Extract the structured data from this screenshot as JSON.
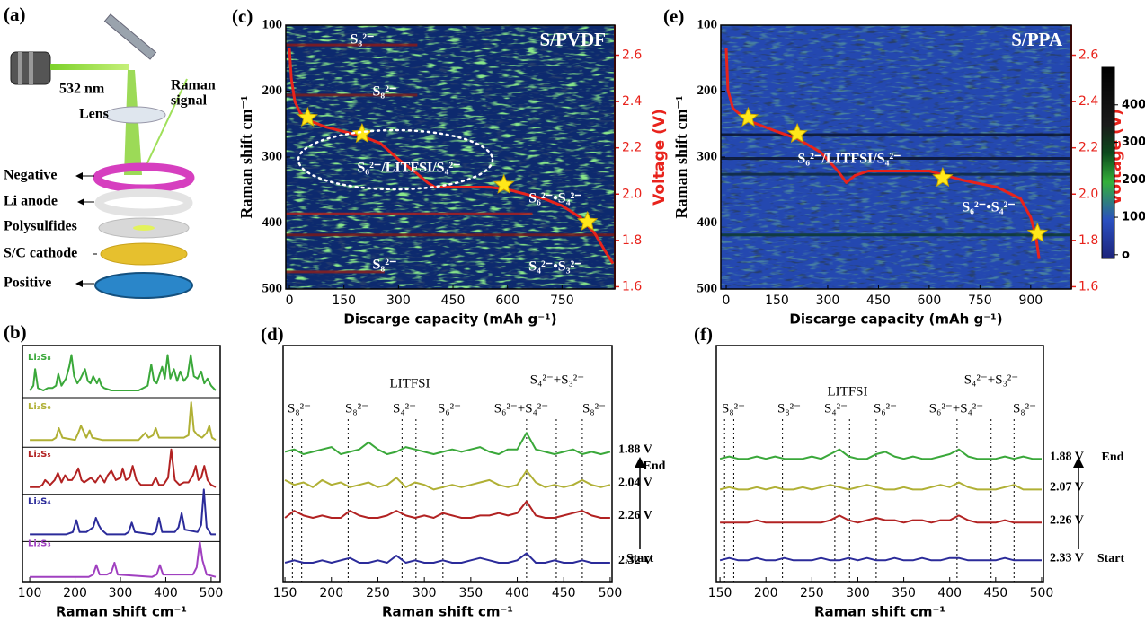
{
  "diagram": {
    "label": "(a)",
    "laser": "532 nm",
    "signal": [
      "Raman",
      "signal"
    ],
    "lens": "Lens",
    "layers": [
      "Negative",
      "Li anode",
      "Polysulfides",
      "S/C cathode",
      "Positive"
    ]
  },
  "chart_data": [
    {
      "type": "line",
      "label": "(b)",
      "xlabel": "Raman shift cm⁻¹",
      "xlim": [
        84,
        520
      ],
      "xticks": [
        100,
        200,
        300,
        400,
        500
      ],
      "ylim": [
        0,
        10
      ],
      "series": [
        {
          "name": "Li₂S₈",
          "color": "#3aa83a",
          "x": [
            100,
            108,
            112,
            118,
            130,
            140,
            150,
            158,
            163,
            170,
            180,
            187,
            192,
            198,
            205,
            212,
            222,
            228,
            234,
            240,
            248,
            253,
            258,
            264,
            280,
            340,
            360,
            368,
            374,
            380,
            392,
            398,
            404,
            410,
            418,
            425,
            432,
            440,
            448,
            455,
            462,
            470,
            478,
            485,
            492,
            500,
            510
          ],
          "values": [
            8.1,
            8.3,
            9.0,
            8.2,
            8.1,
            8.2,
            8.2,
            8.3,
            8.8,
            8.3,
            8.6,
            9.1,
            9.6,
            8.7,
            8.4,
            8.6,
            9.0,
            8.5,
            8.4,
            8.7,
            8.4,
            8.6,
            8.3,
            8.2,
            8.1,
            8.1,
            8.3,
            9.2,
            8.5,
            8.4,
            9.1,
            8.6,
            9.6,
            8.6,
            9.0,
            8.5,
            8.9,
            8.5,
            8.7,
            9.6,
            8.7,
            8.6,
            8.9,
            8.4,
            8.6,
            8.3,
            8.1
          ]
        },
        {
          "name": "Li₂S₆",
          "color": "#b0b035",
          "x": [
            100,
            150,
            158,
            164,
            172,
            200,
            207,
            213,
            225,
            232,
            238,
            260,
            340,
            355,
            362,
            372,
            378,
            385,
            440,
            450,
            456,
            462,
            470,
            480,
            490,
            496,
            502,
            510
          ],
          "values": [
            6.0,
            6.0,
            6.1,
            6.5,
            6.1,
            6.0,
            6.3,
            6.6,
            6.1,
            6.4,
            6.1,
            6.0,
            6.0,
            6.3,
            6.1,
            6.2,
            6.5,
            6.1,
            6.1,
            6.2,
            7.6,
            6.4,
            6.2,
            6.1,
            6.3,
            6.6,
            6.1,
            6.0
          ]
        },
        {
          "name": "Li₂S₅",
          "color": "#b22222",
          "x": [
            100,
            120,
            128,
            134,
            145,
            155,
            162,
            170,
            178,
            185,
            193,
            200,
            207,
            214,
            220,
            235,
            245,
            255,
            265,
            272,
            280,
            290,
            300,
            305,
            312,
            320,
            327,
            335,
            345,
            370,
            378,
            385,
            395,
            405,
            412,
            420,
            430,
            440,
            450,
            460,
            466,
            472,
            478,
            485,
            492,
            500,
            510
          ],
          "values": [
            4.0,
            4.0,
            4.1,
            4.3,
            4.1,
            4.3,
            4.6,
            4.2,
            4.5,
            4.3,
            4.3,
            4.5,
            4.8,
            4.3,
            4.2,
            4.4,
            4.2,
            4.5,
            4.2,
            4.5,
            4.7,
            4.3,
            4.4,
            4.8,
            4.3,
            4.4,
            4.9,
            4.3,
            4.1,
            4.1,
            4.4,
            4.1,
            4.1,
            4.4,
            5.6,
            4.3,
            4.1,
            4.2,
            4.2,
            4.5,
            4.9,
            4.3,
            4.4,
            4.9,
            4.3,
            4.1,
            4.0
          ]
        },
        {
          "name": "Li₂S₄",
          "color": "#2b2b9a",
          "x": [
            100,
            180,
            195,
            203,
            210,
            225,
            240,
            246,
            252,
            258,
            270,
            310,
            318,
            325,
            332,
            370,
            378,
            385,
            392,
            420,
            428,
            435,
            442,
            470,
            478,
            484,
            490,
            500,
            510
          ],
          "values": [
            2.0,
            2.0,
            2.1,
            2.6,
            2.1,
            2.1,
            2.3,
            2.7,
            2.4,
            2.2,
            2.0,
            2.0,
            2.1,
            2.5,
            2.1,
            2.0,
            2.1,
            2.7,
            2.1,
            2.1,
            2.3,
            2.9,
            2.2,
            2.1,
            2.4,
            3.9,
            2.3,
            2.0,
            2.0
          ]
        },
        {
          "name": "Li₂S₃",
          "color": "#a040c0",
          "x": [
            100,
            230,
            240,
            247,
            254,
            270,
            280,
            287,
            294,
            370,
            380,
            387,
            394,
            460,
            468,
            475,
            481,
            490,
            510
          ],
          "values": [
            0.2,
            0.2,
            0.3,
            0.7,
            0.3,
            0.3,
            0.4,
            0.8,
            0.3,
            0.2,
            0.3,
            0.7,
            0.3,
            0.3,
            0.6,
            1.7,
            0.9,
            0.3,
            0.2
          ]
        }
      ]
    },
    {
      "type": "heatmap",
      "label": "(c)",
      "title": "S/PVDF",
      "xlabel": "Discarge capacity (mAh g⁻¹)",
      "ylabel": "Raman shift cm⁻¹",
      "y2label": "Voltage (V)",
      "xlim": [
        -10,
        895
      ],
      "xticks": [
        0,
        150,
        300,
        450,
        600,
        750
      ],
      "ylim": [
        500,
        100
      ],
      "yticks": [
        100,
        200,
        300,
        400,
        500
      ],
      "y2lim": [
        1.59,
        2.73
      ],
      "y2ticks": [
        1.6,
        1.8,
        {
          "value": 2,
          "label": "2.0"
        },
        2.2,
        2.4,
        2.6
      ],
      "annotations": [
        "S₈²⁻",
        "S₈²⁻",
        "S₆²⁻/LITFSI/S₄²⁻",
        "S₆²⁻•S₄²⁻",
        "S₈²⁻",
        "S₄²⁻•S₃²⁻"
      ],
      "series": [
        {
          "color": "#e8231c",
          "axis": "y2",
          "x": [
            0,
            5,
            15,
            30,
            50,
            100,
            200,
            250,
            300,
            350,
            380,
            400,
            450,
            550,
            600,
            650,
            700,
            750,
            800,
            840,
            870,
            890
          ],
          "values": [
            2.63,
            2.5,
            2.4,
            2.35,
            2.32,
            2.29,
            2.25,
            2.22,
            2.15,
            2.09,
            2.05,
            2.03,
            2.03,
            2.03,
            2.02,
            2.0,
            1.98,
            1.95,
            1.9,
            1.83,
            1.75,
            1.7
          ]
        },
        {
          "marker": "star",
          "color": "#ffe81a",
          "axis": "y2",
          "x": [
            50,
            200,
            590,
            820
          ],
          "values": [
            2.33,
            2.26,
            2.04,
            1.88
          ]
        }
      ]
    },
    {
      "type": "line",
      "label": "(d)",
      "xlabel": "Raman shift cm⁻¹",
      "xlim": [
        148,
        502
      ],
      "xticks": [
        150,
        200,
        250,
        300,
        350,
        400,
        450,
        500
      ],
      "ylim": [
        0,
        10
      ],
      "reference_lines": [
        158,
        168,
        218,
        276,
        291,
        320,
        410,
        442,
        470
      ],
      "annotations": [
        "S₈²⁻",
        "S₈²⁻",
        "S₄²⁻",
        "S₆²⁻",
        "S₆²⁻+S₄²⁻",
        "S₈²⁻",
        "LITFSI",
        "S₄²⁻+S₃²⁻"
      ],
      "side_labels": [
        "End",
        "Start"
      ],
      "x": [
        150,
        160,
        170,
        180,
        190,
        200,
        210,
        220,
        230,
        240,
        250,
        260,
        270,
        280,
        290,
        300,
        310,
        320,
        330,
        340,
        350,
        360,
        370,
        380,
        390,
        400,
        410,
        420,
        430,
        440,
        450,
        460,
        470,
        480,
        490,
        500
      ],
      "series": [
        {
          "name": "1.88 V",
          "color": "#3aa83a",
          "values": [
            5.5,
            5.6,
            5.4,
            5.5,
            5.6,
            5.7,
            5.4,
            5.5,
            5.6,
            5.9,
            5.6,
            5.4,
            5.5,
            5.7,
            5.6,
            5.5,
            5.4,
            5.5,
            5.6,
            5.5,
            5.6,
            5.7,
            5.5,
            5.4,
            5.6,
            5.6,
            6.3,
            5.6,
            5.5,
            5.4,
            5.5,
            5.6,
            5.4,
            5.5,
            5.4,
            5.5
          ]
        },
        {
          "name": "2.04 V",
          "color": "#b0b035",
          "values": [
            4.3,
            4.1,
            4.2,
            4.0,
            4.3,
            4.1,
            4.2,
            4.0,
            4.1,
            4.2,
            4.0,
            4.1,
            4.4,
            4.0,
            4.2,
            4.1,
            3.9,
            4.0,
            4.1,
            4.0,
            4.1,
            4.2,
            4.3,
            4.1,
            4.0,
            4.1,
            4.7,
            4.2,
            4.0,
            4.1,
            4.0,
            4.1,
            4.3,
            4.1,
            4.0,
            4.1
          ]
        },
        {
          "name": "2.26 V",
          "color": "#b22222",
          "values": [
            2.7,
            3.0,
            2.8,
            2.7,
            2.8,
            2.7,
            2.7,
            3.0,
            2.8,
            2.7,
            2.7,
            2.8,
            3.0,
            2.8,
            2.7,
            2.8,
            2.7,
            2.9,
            2.8,
            2.7,
            2.7,
            2.8,
            2.8,
            2.9,
            2.8,
            2.9,
            3.4,
            2.8,
            2.7,
            2.7,
            2.8,
            2.9,
            3.0,
            2.8,
            2.7,
            2.7
          ]
        },
        {
          "name": "2.32 V",
          "color": "#2b2b9a",
          "values": [
            0.8,
            0.9,
            0.8,
            0.8,
            0.9,
            0.8,
            0.9,
            1.0,
            0.8,
            0.8,
            0.9,
            0.8,
            1.1,
            0.8,
            0.9,
            0.8,
            0.8,
            0.9,
            0.8,
            0.8,
            0.9,
            1.0,
            0.9,
            0.8,
            0.8,
            0.9,
            1.2,
            0.8,
            0.8,
            0.9,
            0.8,
            0.8,
            0.9,
            0.8,
            0.8,
            0.8
          ]
        }
      ]
    },
    {
      "type": "heatmap",
      "label": "(e)",
      "title": "S/PPA",
      "xlabel": "Discarge capacity (mAh g⁻¹)",
      "ylabel": "Raman shift cm⁻¹",
      "y2label": "Voltage (V)",
      "xlim": [
        -16,
        1020
      ],
      "xticks": [
        0,
        150,
        300,
        450,
        600,
        750,
        900
      ],
      "ylim": [
        500,
        100
      ],
      "yticks": [
        100,
        200,
        300,
        400,
        500
      ],
      "y2lim": [
        1.59,
        2.73
      ],
      "y2ticks": [
        1.6,
        1.8,
        {
          "value": 2,
          "label": "2.0"
        },
        2.2,
        2.4,
        2.6
      ],
      "annotations": [
        "S₆²⁻/LITFSI/S₄²⁻",
        "S₆²⁻•S₄²⁻"
      ],
      "colorbar": {
        "lim": [
          -10,
          500
        ],
        "ticks": [
          {
            "value": 0,
            "label": "o"
          },
          100,
          200,
          300,
          400
        ]
      },
      "series": [
        {
          "color": "#e8231c",
          "axis": "y2",
          "x": [
            0,
            5,
            20,
            60,
            150,
            210,
            280,
            330,
            355,
            380,
            420,
            500,
            600,
            650,
            700,
            800,
            870,
            900,
            915,
            925
          ],
          "values": [
            2.63,
            2.45,
            2.37,
            2.32,
            2.27,
            2.24,
            2.18,
            2.1,
            2.05,
            2.08,
            2.1,
            2.1,
            2.1,
            2.08,
            2.06,
            2.03,
            1.98,
            1.9,
            1.82,
            1.72
          ]
        },
        {
          "marker": "star",
          "color": "#ffe81a",
          "axis": "y2",
          "x": [
            65,
            210,
            640,
            920
          ],
          "values": [
            2.33,
            2.26,
            2.07,
            1.83
          ]
        }
      ]
    },
    {
      "type": "line",
      "label": "(f)",
      "xlabel": "Raman shift cm⁻¹",
      "xlim": [
        146,
        502
      ],
      "xticks": [
        150,
        200,
        250,
        300,
        350,
        400,
        450,
        500
      ],
      "ylim": [
        0,
        10
      ],
      "reference_lines": [
        155,
        165,
        218,
        275,
        291,
        320,
        408,
        445,
        470
      ],
      "annotations": [
        "S₈²⁻",
        "S₈²⁻",
        "S₄²⁻",
        "S₆²⁻",
        "S₆²⁻+S₄²⁻",
        "S₈²⁻",
        "LITFSI",
        "S₄²⁻+S₃²⁻"
      ],
      "side_labels": [
        "End",
        "Start"
      ],
      "x": [
        150,
        160,
        170,
        180,
        190,
        200,
        210,
        220,
        230,
        240,
        250,
        260,
        270,
        280,
        290,
        300,
        310,
        320,
        330,
        340,
        350,
        360,
        370,
        380,
        390,
        400,
        410,
        420,
        430,
        440,
        450,
        460,
        470,
        480,
        490,
        500
      ],
      "series": [
        {
          "name": "1.88 V",
          "color": "#3aa83a",
          "values": [
            5.2,
            5.3,
            5.2,
            5.2,
            5.3,
            5.2,
            5.3,
            5.2,
            5.2,
            5.2,
            5.3,
            5.2,
            5.4,
            5.6,
            5.3,
            5.2,
            5.2,
            5.4,
            5.5,
            5.3,
            5.2,
            5.3,
            5.2,
            5.2,
            5.3,
            5.4,
            5.6,
            5.3,
            5.2,
            5.2,
            5.2,
            5.3,
            5.2,
            5.3,
            5.2,
            5.2
          ]
        },
        {
          "name": "2.07 V",
          "color": "#b0b035",
          "values": [
            3.9,
            4.0,
            3.9,
            3.9,
            4.0,
            3.9,
            4.0,
            3.9,
            3.9,
            4.0,
            3.9,
            4.0,
            4.1,
            4.0,
            3.9,
            4.0,
            4.1,
            4.0,
            3.9,
            3.9,
            4.0,
            3.9,
            3.9,
            4.0,
            4.1,
            4.0,
            4.2,
            4.0,
            3.9,
            3.9,
            3.9,
            4.0,
            4.1,
            3.9,
            3.9,
            3.9
          ]
        },
        {
          "name": "2.26 V",
          "color": "#b22222",
          "values": [
            2.5,
            2.5,
            2.5,
            2.5,
            2.6,
            2.5,
            2.5,
            2.5,
            2.5,
            2.5,
            2.5,
            2.5,
            2.6,
            2.8,
            2.6,
            2.5,
            2.6,
            2.7,
            2.6,
            2.6,
            2.5,
            2.6,
            2.6,
            2.5,
            2.6,
            2.6,
            2.8,
            2.6,
            2.5,
            2.5,
            2.5,
            2.6,
            2.5,
            2.5,
            2.5,
            2.5
          ]
        },
        {
          "name": "2.33 V",
          "color": "#2b2b9a",
          "values": [
            0.9,
            1.0,
            0.9,
            0.9,
            1.0,
            0.9,
            0.9,
            1.0,
            0.9,
            0.9,
            0.9,
            1.0,
            0.9,
            0.9,
            1.0,
            0.9,
            1.0,
            0.9,
            0.9,
            1.0,
            0.9,
            0.9,
            1.0,
            0.9,
            0.9,
            1.0,
            1.0,
            0.9,
            0.9,
            0.9,
            0.9,
            1.0,
            0.9,
            0.9,
            0.9,
            0.9
          ]
        }
      ]
    }
  ]
}
